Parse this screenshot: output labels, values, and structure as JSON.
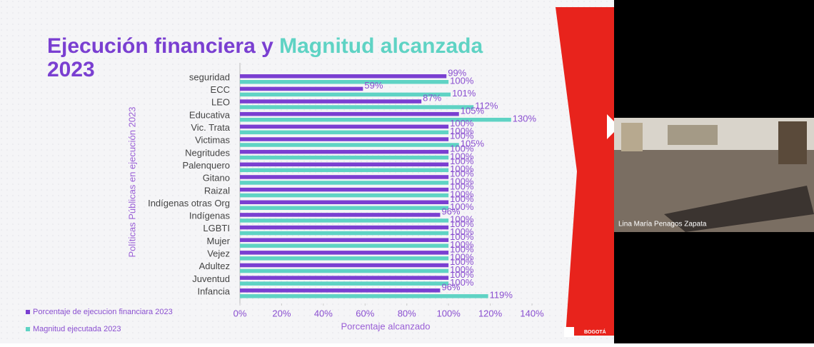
{
  "chart_data": {
    "type": "bar",
    "orientation": "horizontal",
    "title_parts": [
      {
        "text": "Ejecución financiera y ",
        "color": "#7a3fd1"
      },
      {
        "text": "Magnitud alcanzada",
        "color": "#5fd3c4"
      },
      {
        "text": "2023",
        "color": "#7a3fd1"
      }
    ],
    "y_label": "Políticas Públicas en ejecución 2023",
    "x_label": "Porcentaje alcanzado",
    "categories": [
      "seguridad",
      "ECC",
      "LEO",
      "Educativa",
      "Vic. Trata",
      "Victimas",
      "Negritudes",
      "Palenquero",
      "Gitano",
      "Raizal",
      "Indígenas otras Org",
      "Indígenas",
      "LGBTI",
      "Mujer",
      "Vejez",
      "Adultez",
      "Juventud",
      "Infancia"
    ],
    "series": [
      {
        "name": "Porcentaje de ejecucion financiara 2023",
        "color": "#7a3fd1",
        "values": [
          99,
          59,
          87,
          105,
          100,
          100,
          100,
          100,
          100,
          100,
          100,
          96,
          100,
          100,
          100,
          100,
          100,
          96
        ],
        "value_labels": [
          "99%",
          "59%",
          "87%",
          "105%",
          "100%",
          "100%",
          "100%",
          "100%",
          "100%",
          "100%",
          "100%",
          "96%",
          "100%",
          "100%",
          "100%",
          "100%",
          "100%",
          "96%"
        ]
      },
      {
        "name": "Magnitud ejecutada 2023",
        "color": "#5fd3c4",
        "values": [
          100,
          101,
          112,
          130,
          100,
          105,
          100,
          100,
          100,
          100,
          100,
          100,
          100,
          100,
          100,
          100,
          100,
          119
        ],
        "value_labels": [
          "100%",
          "101%",
          "112%",
          "130%",
          "100%",
          "105%",
          "100%",
          "100%",
          "100%",
          "100%",
          "100%",
          "100%",
          "100%",
          "100%",
          "100%",
          "100%",
          "100%",
          "119%"
        ]
      }
    ],
    "xlim": [
      0,
      140
    ],
    "xticks": [
      {
        "value": 0,
        "label": "0%"
      },
      {
        "value": 20,
        "label": "20%"
      },
      {
        "value": 40,
        "label": "40%"
      },
      {
        "value": 60,
        "label": "60%"
      },
      {
        "value": 80,
        "label": "80%"
      },
      {
        "value": 100,
        "label": "100%"
      },
      {
        "value": 120,
        "label": "120%"
      },
      {
        "value": 140,
        "label": "140%"
      }
    ],
    "legend": "bottom-left"
  },
  "video": {
    "participant": "Lina María Penagos Zapata"
  },
  "logo": "BOGOTÁ"
}
